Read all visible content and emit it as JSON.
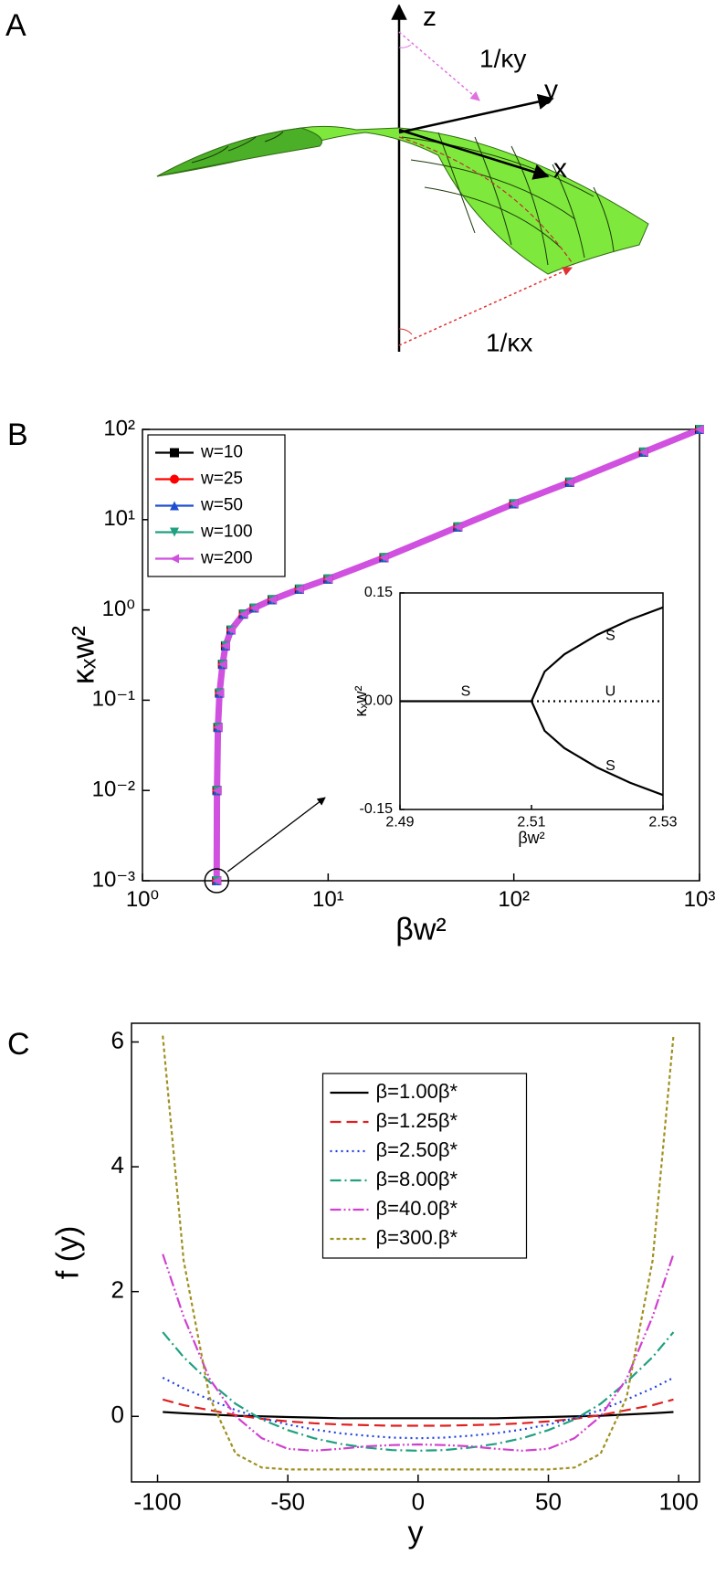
{
  "diagram": {
    "label": "A",
    "axes": {
      "z": "z",
      "y": "y",
      "x": "x"
    },
    "radii": {
      "y": "1/κy",
      "x": "1/κx"
    }
  },
  "chart_data": [
    {
      "type": "line",
      "panel_label": "B",
      "xlabel": "βw²",
      "ylabel": "κₓw²",
      "xscale": "log",
      "yscale": "log",
      "legend": "upper left",
      "xlim": [
        1,
        1000
      ],
      "ylim": [
        0.001,
        100
      ],
      "xticks": [
        {
          "value": 1,
          "label": "10⁰"
        },
        {
          "value": 10,
          "label": "10¹"
        },
        {
          "value": 100,
          "label": "10²"
        },
        {
          "value": 1000,
          "label": "10³"
        }
      ],
      "yticks": [
        {
          "value": 0.001,
          "label": "10⁻³"
        },
        {
          "value": 0.01,
          "label": "10⁻²"
        },
        {
          "value": 0.1,
          "label": "10⁻¹"
        },
        {
          "value": 1,
          "label": "10⁰"
        },
        {
          "value": 10,
          "label": "10¹"
        },
        {
          "value": 100,
          "label": "10²"
        }
      ],
      "x": [
        2.51,
        2.52,
        2.55,
        2.6,
        2.7,
        2.8,
        3,
        3.5,
        4,
        5,
        7,
        10,
        20,
        50,
        100,
        200,
        500,
        1000
      ],
      "series": [
        {
          "name": "w=10",
          "color": "#000000",
          "marker": "square",
          "values": [
            0.001,
            0.01,
            0.05,
            0.12,
            0.25,
            0.4,
            0.6,
            0.9,
            1.05,
            1.3,
            1.7,
            2.2,
            3.8,
            8.3,
            15,
            26,
            56,
            100
          ]
        },
        {
          "name": "w=25",
          "color": "#ff0000",
          "marker": "circle",
          "values": [
            0.001,
            0.01,
            0.05,
            0.12,
            0.25,
            0.4,
            0.6,
            0.9,
            1.05,
            1.3,
            1.7,
            2.2,
            3.8,
            8.3,
            15,
            26,
            56,
            100
          ]
        },
        {
          "name": "w=50",
          "color": "#1f4fd0",
          "marker": "triangle-up",
          "values": [
            0.001,
            0.01,
            0.05,
            0.12,
            0.25,
            0.4,
            0.6,
            0.9,
            1.05,
            1.3,
            1.7,
            2.2,
            3.8,
            8.3,
            15,
            26,
            56,
            100
          ]
        },
        {
          "name": "w=100",
          "color": "#20a080",
          "marker": "triangle-down",
          "values": [
            0.001,
            0.01,
            0.05,
            0.12,
            0.25,
            0.4,
            0.6,
            0.9,
            1.05,
            1.3,
            1.7,
            2.2,
            3.8,
            8.3,
            15,
            26,
            56,
            100
          ]
        },
        {
          "name": "w=200",
          "color": "#d050e0",
          "marker": "triangle-left",
          "values": [
            0.001,
            0.01,
            0.05,
            0.12,
            0.25,
            0.4,
            0.6,
            0.9,
            1.05,
            1.3,
            1.7,
            2.2,
            3.8,
            8.3,
            15,
            26,
            56,
            100
          ]
        }
      ]
    },
    {
      "type": "line",
      "xlabel": "βw²",
      "ylabel": "κₓw²",
      "xlim": [
        2.49,
        2.53
      ],
      "ylim": [
        -0.15,
        0.15
      ],
      "xticks": [
        2.49,
        2.51,
        2.53
      ],
      "yticks": [
        -0.15,
        {
          "value": 0,
          "label": "0.00"
        },
        0.15
      ],
      "annotations": [
        "S",
        "S",
        "U",
        "S"
      ],
      "series": [
        {
          "color": "#000000",
          "linestyle": "solid",
          "x": [
            2.49,
            2.51
          ],
          "values": [
            0,
            0
          ]
        },
        {
          "color": "#000000",
          "linestyle": "solid",
          "x": [
            2.51,
            2.512,
            2.515,
            2.52,
            2.525,
            2.53
          ],
          "values": [
            0,
            0.041,
            0.065,
            0.092,
            0.113,
            0.13
          ]
        },
        {
          "color": "#000000",
          "linestyle": "solid",
          "x": [
            2.51,
            2.512,
            2.515,
            2.52,
            2.525,
            2.53
          ],
          "values": [
            0,
            -0.041,
            -0.065,
            -0.092,
            -0.113,
            -0.13
          ]
        },
        {
          "color": "#000000",
          "linestyle": "dotted",
          "x": [
            2.51,
            2.53
          ],
          "values": [
            0,
            0
          ]
        }
      ]
    },
    {
      "type": "line",
      "panel_label": "C",
      "xlabel": "y",
      "ylabel": "f (y)",
      "legend": "upper center",
      "xlim": [
        -110,
        108
      ],
      "ylim": [
        -1.05,
        6.3
      ],
      "xticks": [
        -100,
        -50,
        0,
        50,
        100
      ],
      "yticks": [
        0,
        2,
        4,
        6
      ],
      "x": [
        -98,
        -90,
        -80,
        -70,
        -60,
        -50,
        -40,
        -30,
        -20,
        -10,
        0,
        10,
        20,
        30,
        40,
        50,
        60,
        70,
        80,
        90,
        98
      ],
      "series": [
        {
          "name": "β=1.00β*",
          "color": "#000000",
          "linestyle": "solid",
          "values": [
            0.07,
            0.05,
            0.03,
            0.01,
            0,
            -0.01,
            -0.02,
            -0.03,
            -0.03,
            -0.03,
            -0.03,
            -0.03,
            -0.03,
            -0.03,
            -0.02,
            -0.01,
            0,
            0.01,
            0.03,
            0.05,
            0.07
          ]
        },
        {
          "name": "β=1.25β*",
          "color": "#e02020",
          "linestyle": "dashed",
          "values": [
            0.27,
            0.18,
            0.1,
            0.02,
            -0.04,
            -0.08,
            -0.11,
            -0.13,
            -0.14,
            -0.15,
            -0.15,
            -0.15,
            -0.14,
            -0.13,
            -0.11,
            -0.08,
            -0.04,
            0.02,
            0.1,
            0.18,
            0.27
          ]
        },
        {
          "name": "β=2.50β*",
          "color": "#2040e0",
          "linestyle": "dotted",
          "values": [
            0.62,
            0.45,
            0.27,
            0.1,
            -0.03,
            -0.13,
            -0.21,
            -0.27,
            -0.31,
            -0.34,
            -0.35,
            -0.34,
            -0.31,
            -0.27,
            -0.21,
            -0.13,
            -0.03,
            0.1,
            0.27,
            0.45,
            0.62
          ]
        },
        {
          "name": "β=8.00β*",
          "color": "#20a080",
          "linestyle": "dashdot",
          "values": [
            1.35,
            0.95,
            0.55,
            0.2,
            -0.05,
            -0.22,
            -0.35,
            -0.44,
            -0.5,
            -0.54,
            -0.55,
            -0.54,
            -0.5,
            -0.44,
            -0.35,
            -0.22,
            -0.05,
            0.2,
            0.55,
            0.95,
            1.35
          ]
        },
        {
          "name": "β=40.0β*",
          "color": "#d040d0",
          "linestyle": "dashdotdot",
          "values": [
            2.6,
            1.6,
            0.6,
            0,
            -0.35,
            -0.52,
            -0.55,
            -0.52,
            -0.48,
            -0.46,
            -0.45,
            -0.46,
            -0.48,
            -0.52,
            -0.55,
            -0.52,
            -0.35,
            0,
            0.6,
            1.6,
            2.6
          ]
        },
        {
          "name": "β=300.β*",
          "color": "#a09020",
          "linestyle": "shortdash",
          "values": [
            6.1,
            2.5,
            0.3,
            -0.6,
            -0.82,
            -0.85,
            -0.85,
            -0.85,
            -0.85,
            -0.85,
            -0.85,
            -0.85,
            -0.85,
            -0.85,
            -0.85,
            -0.85,
            -0.82,
            -0.6,
            0.3,
            2.5,
            6.1
          ]
        }
      ]
    }
  ]
}
